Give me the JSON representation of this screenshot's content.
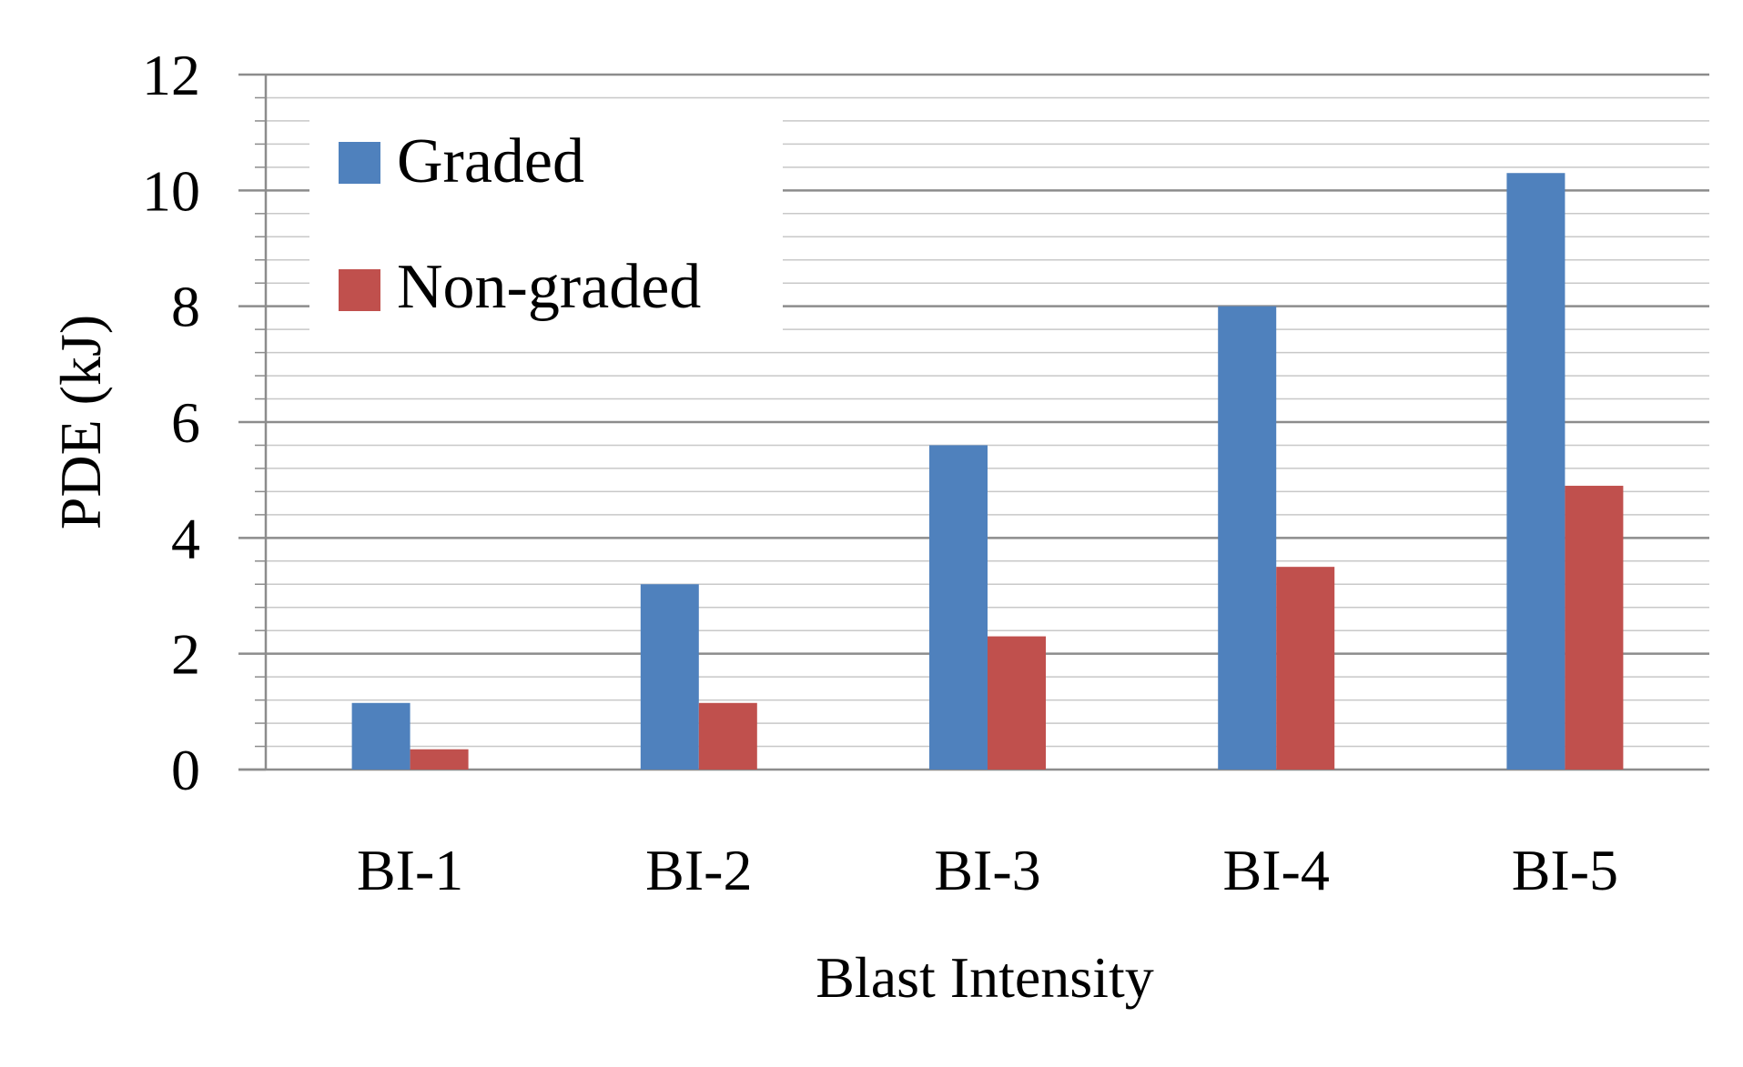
{
  "chart_data": {
    "type": "bar",
    "title": "",
    "xlabel": "Blast Intensity",
    "ylabel": "PDE (kJ)",
    "ylim": [
      0,
      12
    ],
    "yticks": [
      0,
      2,
      4,
      6,
      8,
      10,
      12
    ],
    "minor_step": 0.4,
    "categories": [
      "BI-1",
      "BI-2",
      "BI-3",
      "BI-4",
      "BI-5"
    ],
    "series": [
      {
        "name": "Graded",
        "color": "#4F81BD",
        "values": [
          1.15,
          3.2,
          5.6,
          8.0,
          10.3
        ]
      },
      {
        "name": "Non-graded",
        "color": "#C0504D",
        "values": [
          0.35,
          1.15,
          2.3,
          3.5,
          4.9
        ]
      }
    ],
    "legend": "top-left",
    "grid": true
  }
}
